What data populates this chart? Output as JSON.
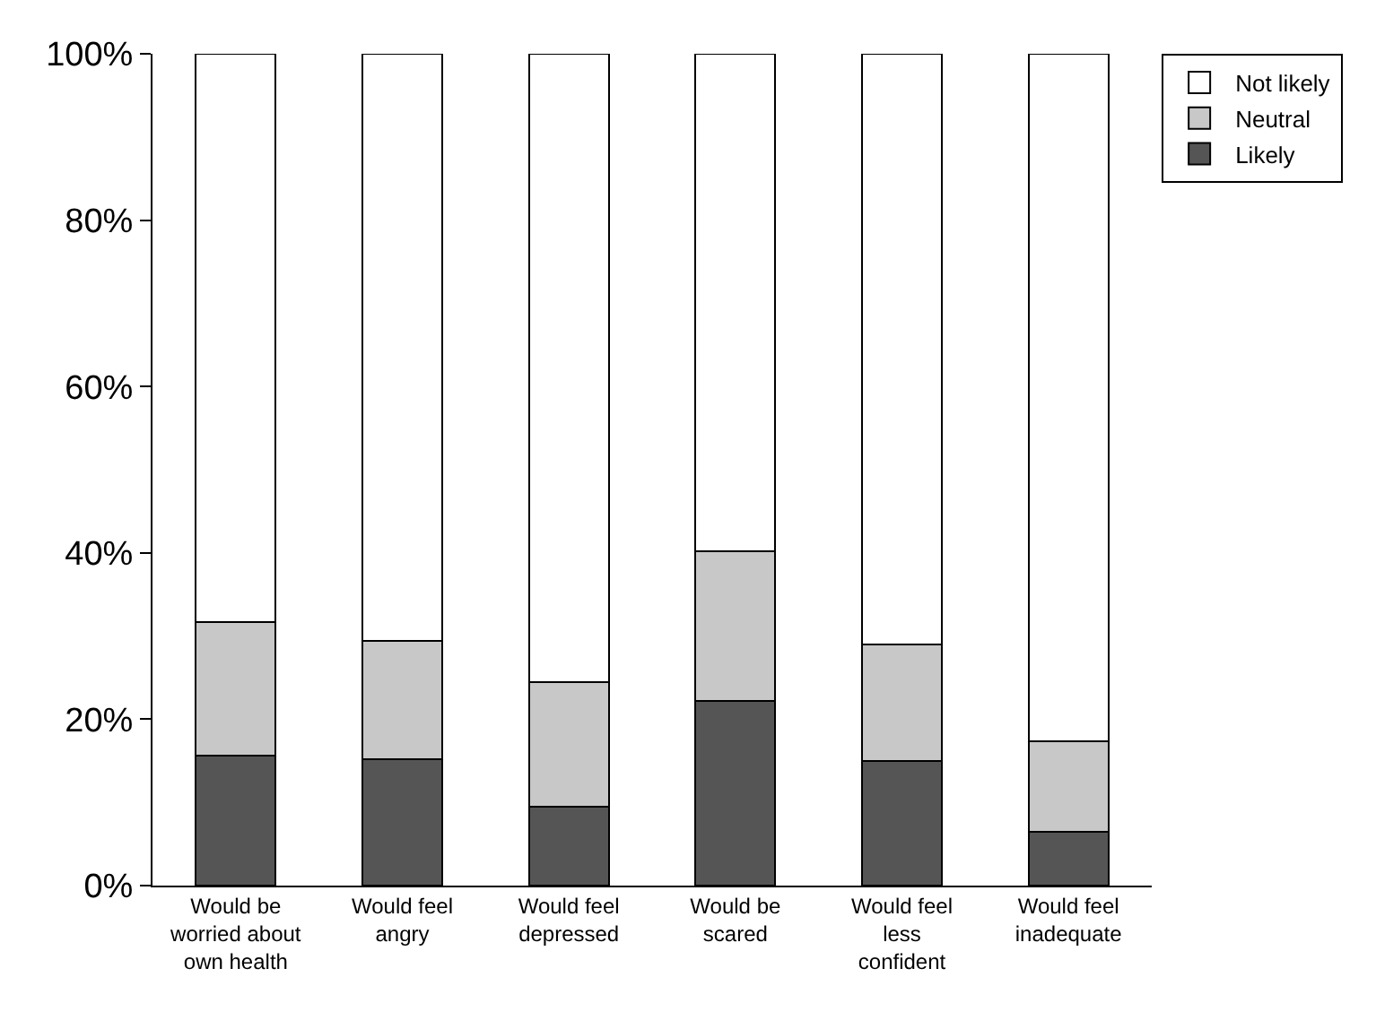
{
  "chart_data": {
    "type": "bar",
    "stacked": true,
    "categories": [
      "Would be worried about own health",
      "Would feel angry",
      "Would feel depressed",
      "Would be scared",
      "Would feel less confident",
      "Would feel inadequate"
    ],
    "series": [
      {
        "name": "Likely",
        "color": "#555555",
        "values": [
          15.6,
          15.2,
          9.5,
          22.2,
          15.0,
          6.5
        ]
      },
      {
        "name": "Neutral",
        "color": "#c8c8c8",
        "values": [
          16.1,
          14.2,
          15.0,
          18.0,
          14.0,
          10.8
        ]
      },
      {
        "name": "Not likely",
        "color": "#ffffff",
        "values": [
          68.3,
          70.6,
          75.5,
          59.8,
          71.0,
          82.7
        ]
      }
    ],
    "ylim": [
      0,
      100
    ],
    "yticks": [
      {
        "value": 0,
        "label": "0%"
      },
      {
        "value": 20,
        "label": "20%"
      },
      {
        "value": 40,
        "label": "40%"
      },
      {
        "value": 60,
        "label": "60%"
      },
      {
        "value": 80,
        "label": "80%"
      },
      {
        "value": 100,
        "label": "100%"
      }
    ],
    "legend": "top right"
  }
}
